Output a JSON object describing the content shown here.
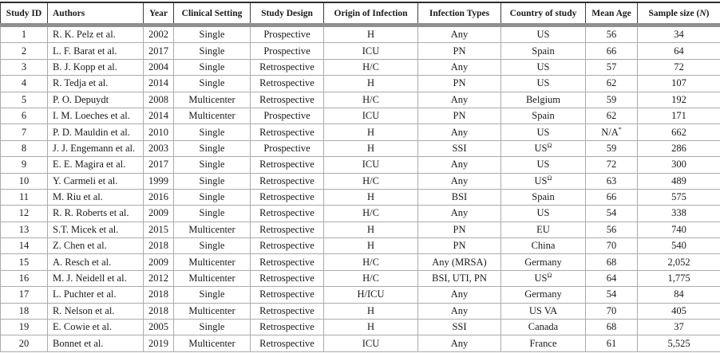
{
  "table": {
    "columns": [
      {
        "label": "Study ID"
      },
      {
        "label": "Authors"
      },
      {
        "label": "Year"
      },
      {
        "label": "Clinical Setting"
      },
      {
        "label": "Study Design"
      },
      {
        "label": "Origin of Infection"
      },
      {
        "label": "Infection Types"
      },
      {
        "label": "Country of study"
      },
      {
        "label": "Mean Age"
      },
      {
        "pre": "Sample size (",
        "em": "N",
        "post": ")"
      }
    ],
    "rows": [
      [
        "1",
        "R. K. Pelz et al.",
        "2002",
        "Single",
        "Prospective",
        "H",
        "Any",
        "US",
        "56",
        "34"
      ],
      [
        "2",
        "L. F. Barat et al.",
        "2017",
        "Single",
        "Prospective",
        "ICU",
        "PN",
        "Spain",
        "66",
        "64"
      ],
      [
        "3",
        "B. J. Kopp et al.",
        "2004",
        "Single",
        "Retrospective",
        "H/C",
        "Any",
        "US",
        "57",
        "72"
      ],
      [
        "4",
        "R. Tedja et al.",
        "2014",
        "Single",
        "Retrospective",
        "H",
        "PN",
        "US",
        "62",
        "107"
      ],
      [
        "5",
        "P. O. Depuydt",
        "2008",
        "Multicenter",
        "Retrospective",
        "H/C",
        "Any",
        "Belgium",
        "59",
        "192"
      ],
      [
        "6",
        "I. M. Loeches et al.",
        "2014",
        "Multicenter",
        "Prospective",
        "ICU",
        "PN",
        "Spain",
        "62",
        "171"
      ],
      [
        "7",
        "P. D. Mauldin et al.",
        "2010",
        "Single",
        "Retrospective",
        "H",
        "Any",
        "US",
        {
          "text": "N/A",
          "sup": "*"
        },
        "662"
      ],
      [
        "8",
        "J. J. Engemann et al.",
        "2003",
        "Single",
        "Prospective",
        "H",
        "SSI",
        {
          "text": "US",
          "sup": "Ω"
        },
        "59",
        "286"
      ],
      [
        "9",
        "E. E. Magira et al.",
        "2017",
        "Single",
        "Retrospective",
        "ICU",
        "Any",
        "US",
        "72",
        "300"
      ],
      [
        "10",
        "Y. Carmeli et al.",
        "1999",
        "Single",
        "Retrospective",
        "H/C",
        "Any",
        {
          "text": "US",
          "sup": "Ω"
        },
        "63",
        "489"
      ],
      [
        "11",
        "M. Riu et al.",
        "2016",
        "Single",
        "Retrospective",
        "H",
        "BSI",
        "Spain",
        "66",
        "575"
      ],
      [
        "12",
        "R. R. Roberts et al.",
        "2009",
        "Single",
        "Retrospective",
        "H/C",
        "Any",
        "US",
        "54",
        "338"
      ],
      [
        "13",
        "S.T. Micek et al.",
        "2015",
        "Multicenter",
        "Retrospective",
        "H",
        "PN",
        "EU",
        "56",
        "740"
      ],
      [
        "14",
        "Z. Chen et al.",
        "2018",
        "Single",
        "Retrospective",
        "H",
        "PN",
        "China",
        "70",
        "540"
      ],
      [
        "15",
        "A. Resch et al.",
        "2009",
        "Multicenter",
        "Retrospective",
        "H/C",
        "Any (MRSA)",
        "Germany",
        "68",
        "2,052"
      ],
      [
        "16",
        "M. J. Neidell et al.",
        "2012",
        "Multicenter",
        "Retrospective",
        "H/C",
        "BSI, UTI, PN",
        {
          "text": "US",
          "sup": "Ω"
        },
        "64",
        "1,775"
      ],
      [
        "17",
        "L. Puchter et al.",
        "2018",
        "Single",
        "Retrospective",
        "H/ICU",
        "Any",
        "Germany",
        "54",
        "84"
      ],
      [
        "18",
        "R. Nelson et al.",
        "2018",
        "Multicenter",
        "Retrospective",
        "H",
        "Any",
        "US VA",
        "70",
        "405"
      ],
      [
        "19",
        "E. Cowie et al.",
        "2005",
        "Single",
        "Retrospective",
        "H",
        "SSI",
        "Canada",
        "68",
        "37"
      ],
      [
        "20",
        "Bonnet et al.",
        "2019",
        "Multicenter",
        "Retrospective",
        "ICU",
        "Any",
        "France",
        "61",
        "5,525"
      ]
    ]
  },
  "styles": {
    "text_color": "#1a1a1a",
    "grid_color": "#ababab",
    "header_rule_color": "#8f8f8f",
    "top_rule_color": "#2e2e2e"
  }
}
